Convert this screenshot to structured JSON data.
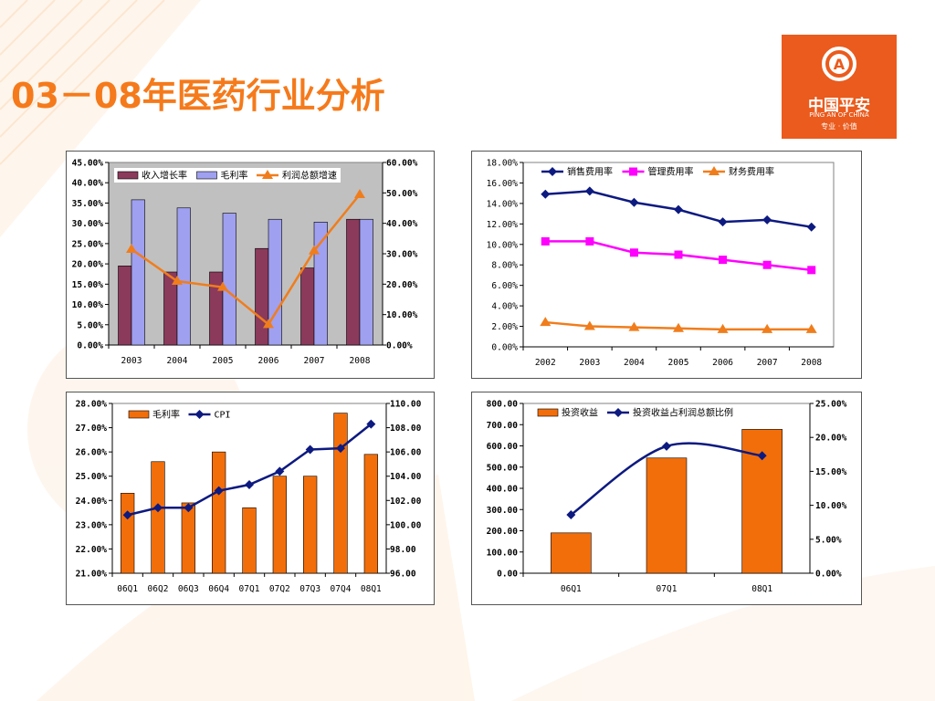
{
  "slide": {
    "title": "03－08年医药行业分析",
    "logo": {
      "name_cn": "中国平安",
      "name_en": "PING AN OF CHINA",
      "slogan": "专业 · 价值",
      "brand_color": "#ea5b1d"
    }
  },
  "chart_data": [
    {
      "type": "bar",
      "categories": [
        "2003",
        "2004",
        "2005",
        "2006",
        "2007",
        "2008"
      ],
      "series": [
        {
          "name": "收入增长率",
          "kind": "bar",
          "axis": "left",
          "color": "#8b3a5c",
          "values": [
            19.5,
            18.0,
            18.0,
            23.8,
            19.0,
            31.0
          ]
        },
        {
          "name": "毛利率",
          "kind": "bar",
          "axis": "left",
          "color": "#a0a0f0",
          "values": [
            35.8,
            33.8,
            32.5,
            31.0,
            30.3,
            31.0
          ]
        },
        {
          "name": "利润总额增速",
          "kind": "line",
          "axis": "right",
          "color": "#f07d1c",
          "marker": "triangle",
          "values": [
            31.5,
            21.0,
            19.0,
            6.8,
            31.0,
            49.5
          ]
        }
      ],
      "left_axis": {
        "min": 0,
        "max": 45,
        "step": 5,
        "ticks": [
          "0.00%",
          "5.00%",
          "10.00%",
          "15.00%",
          "20.00%",
          "25.00%",
          "30.00%",
          "35.00%",
          "40.00%",
          "45.00%"
        ]
      },
      "right_axis": {
        "min": 0,
        "max": 60,
        "step": 10,
        "ticks": [
          "0.00%",
          "10.00%",
          "20.00%",
          "30.00%",
          "40.00%",
          "50.00%",
          "60.00%"
        ]
      }
    },
    {
      "type": "line",
      "categories": [
        "2002",
        "2003",
        "2004",
        "2005",
        "2006",
        "2007",
        "2008"
      ],
      "series": [
        {
          "name": "销售费用率",
          "kind": "line",
          "axis": "left",
          "color": "#0d1a80",
          "marker": "diamond",
          "values": [
            14.9,
            15.2,
            14.1,
            13.4,
            12.2,
            12.4,
            11.7
          ]
        },
        {
          "name": "管理费用率",
          "kind": "line",
          "axis": "left",
          "color": "#ff00ff",
          "marker": "square",
          "values": [
            10.3,
            10.3,
            9.2,
            9.0,
            8.5,
            8.0,
            7.5
          ]
        },
        {
          "name": "财务费用率",
          "kind": "line",
          "axis": "left",
          "color": "#f07d1c",
          "marker": "triangle",
          "values": [
            2.4,
            2.0,
            1.9,
            1.8,
            1.7,
            1.7,
            1.7
          ]
        }
      ],
      "left_axis": {
        "min": 0,
        "max": 18,
        "step": 2,
        "ticks": [
          "0.00%",
          "2.00%",
          "4.00%",
          "6.00%",
          "8.00%",
          "10.00%",
          "12.00%",
          "14.00%",
          "16.00%",
          "18.00%"
        ]
      }
    },
    {
      "type": "bar",
      "categories": [
        "06Q1",
        "06Q2",
        "06Q3",
        "06Q4",
        "07Q1",
        "07Q2",
        "07Q3",
        "07Q4",
        "08Q1"
      ],
      "series": [
        {
          "name": "毛利率",
          "kind": "bar",
          "axis": "left",
          "color": "#f26e0a",
          "values": [
            24.3,
            25.6,
            23.9,
            26.0,
            23.7,
            25.0,
            25.0,
            27.6,
            25.9
          ]
        },
        {
          "name": "CPI",
          "kind": "line",
          "axis": "right",
          "color": "#0d1a80",
          "marker": "diamond",
          "values": [
            100.8,
            101.4,
            101.4,
            102.8,
            103.3,
            104.4,
            106.2,
            106.3,
            108.3
          ]
        }
      ],
      "left_axis": {
        "min": 21,
        "max": 28,
        "step": 1,
        "ticks": [
          "21.00%",
          "22.00%",
          "23.00%",
          "24.00%",
          "25.00%",
          "26.00%",
          "27.00%",
          "28.00%"
        ]
      },
      "right_axis": {
        "min": 96,
        "max": 110,
        "step": 2,
        "ticks": [
          "96.00",
          "98.00",
          "100.00",
          "102.00",
          "104.00",
          "106.00",
          "108.00",
          "110.00"
        ]
      }
    },
    {
      "type": "bar",
      "categories": [
        "06Q1",
        "07Q1",
        "08Q1"
      ],
      "series": [
        {
          "name": "投资收益",
          "kind": "bar",
          "axis": "left",
          "color": "#f26e0a",
          "values": [
            190,
            543,
            678
          ]
        },
        {
          "name": "投资收益占利润总额比例",
          "kind": "line",
          "axis": "right",
          "color": "#0d1a80",
          "marker": "diamond",
          "values": [
            8.6,
            18.7,
            17.3
          ]
        }
      ],
      "left_axis": {
        "min": 0,
        "max": 800,
        "step": 100,
        "ticks": [
          "0.00",
          "100.00",
          "200.00",
          "300.00",
          "400.00",
          "500.00",
          "600.00",
          "700.00",
          "800.00"
        ]
      },
      "right_axis": {
        "min": 0,
        "max": 25,
        "step": 5,
        "ticks": [
          "0.00%",
          "5.00%",
          "10.00%",
          "15.00%",
          "20.00%",
          "25.00%"
        ]
      }
    }
  ]
}
